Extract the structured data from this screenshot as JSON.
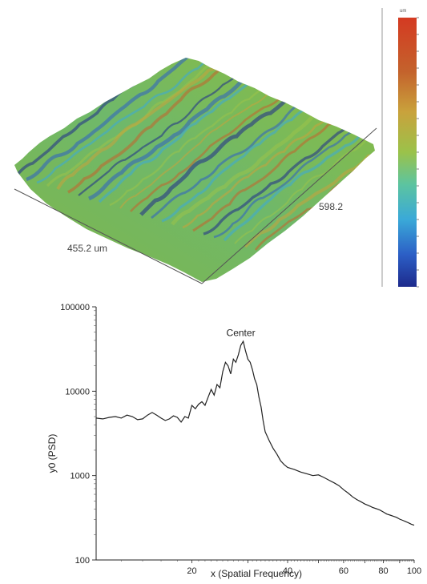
{
  "surface": {
    "scale_unit": "um",
    "x_dimension_label": "455.2 um",
    "y_dimension_label": "598.2",
    "colormap": [
      "#1d2a8c",
      "#2c5fc6",
      "#3aa9d8",
      "#5cc4a0",
      "#9bc24a",
      "#c9a23c",
      "#c4622c",
      "#d43a22"
    ]
  },
  "chart_data": {
    "type": "line",
    "xlabel": "x (Spatial Frequency)",
    "ylabel": "y0 (PSD)",
    "x_scale": "log",
    "y_scale": "log",
    "xlim": [
      10,
      100
    ],
    "ylim": [
      100,
      100000
    ],
    "x_ticks": [
      20,
      40,
      60,
      80,
      100
    ],
    "y_ticks": [
      100,
      1000,
      10000,
      100000
    ],
    "grid": false,
    "annotations": [
      {
        "text": "Center",
        "x": 28.5,
        "y": 38000
      }
    ],
    "series": [
      {
        "x": [
          10,
          10.5,
          11,
          11.5,
          12,
          12.5,
          13,
          13.5,
          14,
          14.5,
          15,
          15.5,
          16,
          16.5,
          17,
          17.5,
          18,
          18.5,
          19,
          19.5,
          20,
          20.5,
          21,
          21.5,
          22,
          22.5,
          23,
          23.5,
          24,
          24.5,
          25,
          25.5,
          26,
          26.5,
          27,
          27.5,
          28,
          28.5,
          29,
          29.5,
          30,
          30.5,
          31,
          31.5,
          32,
          32.5,
          33,
          33.5,
          34,
          35,
          36,
          37,
          38,
          39,
          40,
          42,
          44,
          46,
          48,
          50,
          52,
          54,
          56,
          58,
          60,
          62,
          64,
          66,
          68,
          70,
          72,
          74,
          76,
          78,
          80,
          82,
          84,
          86,
          88,
          90,
          92,
          94,
          96,
          98,
          100
        ],
        "y": [
          4800,
          4700,
          4900,
          5000,
          4800,
          5200,
          5000,
          4600,
          4700,
          5200,
          5600,
          5200,
          4800,
          4500,
          4700,
          5100,
          4900,
          4300,
          5000,
          4800,
          6800,
          6200,
          7000,
          7500,
          6800,
          8500,
          10500,
          9000,
          12000,
          11000,
          17000,
          22000,
          20000,
          16000,
          24000,
          22000,
          27000,
          35000,
          39000,
          30000,
          24000,
          22000,
          18000,
          14000,
          12000,
          8500,
          6500,
          4500,
          3300,
          2600,
          2100,
          1800,
          1500,
          1350,
          1250,
          1180,
          1100,
          1050,
          1000,
          1020,
          950,
          880,
          820,
          760,
          680,
          620,
          560,
          520,
          490,
          460,
          440,
          420,
          405,
          390,
          370,
          350,
          340,
          330,
          320,
          305,
          295,
          285,
          275,
          265,
          258
        ]
      }
    ]
  }
}
